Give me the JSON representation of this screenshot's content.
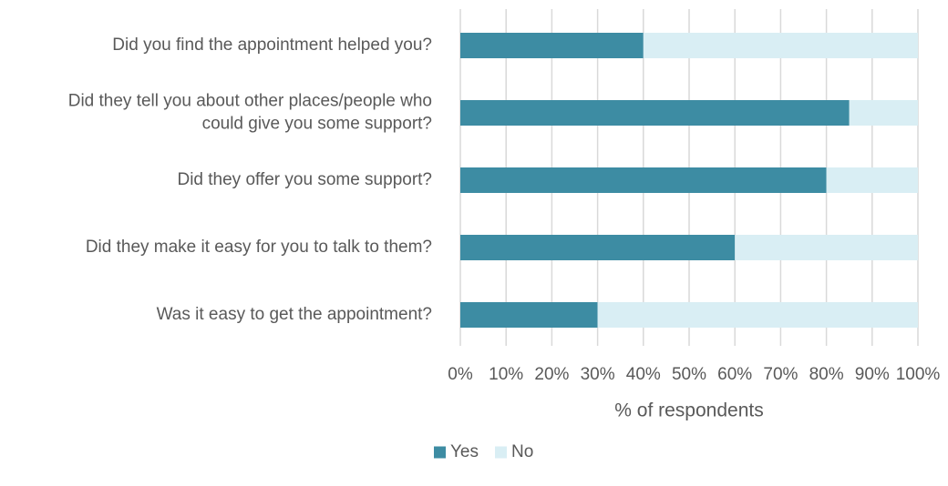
{
  "chart_data": {
    "type": "bar",
    "orientation": "horizontal",
    "stacked": true,
    "categories": [
      "Did you find the appointment helped you?",
      "Did they tell you about other places/people who could give you some support?",
      "Did they offer you some support?",
      "Did they make it easy for you to talk to them?",
      "Was it easy to get the appointment?"
    ],
    "category_lines": [
      [
        "Did you find the appointment helped you?"
      ],
      [
        "Did they tell you about other places/people who",
        "could give you some support?"
      ],
      [
        "Did they offer you some support?"
      ],
      [
        "Did they make it easy for you to talk to them?"
      ],
      [
        "Was it easy to get the appointment?"
      ]
    ],
    "series": [
      {
        "name": "Yes",
        "values": [
          40,
          85,
          80,
          60,
          30
        ],
        "color": "#3d8ca3"
      },
      {
        "name": "No",
        "values": [
          60,
          15,
          20,
          40,
          70
        ],
        "color": "#d9eef4"
      }
    ],
    "x_ticks": [
      "0%",
      "10%",
      "20%",
      "30%",
      "40%",
      "50%",
      "60%",
      "70%",
      "80%",
      "90%",
      "100%"
    ],
    "xlim": [
      0,
      100
    ],
    "xlabel": "% of respondents",
    "title": "",
    "grid": true,
    "legend": "bottom-center"
  }
}
